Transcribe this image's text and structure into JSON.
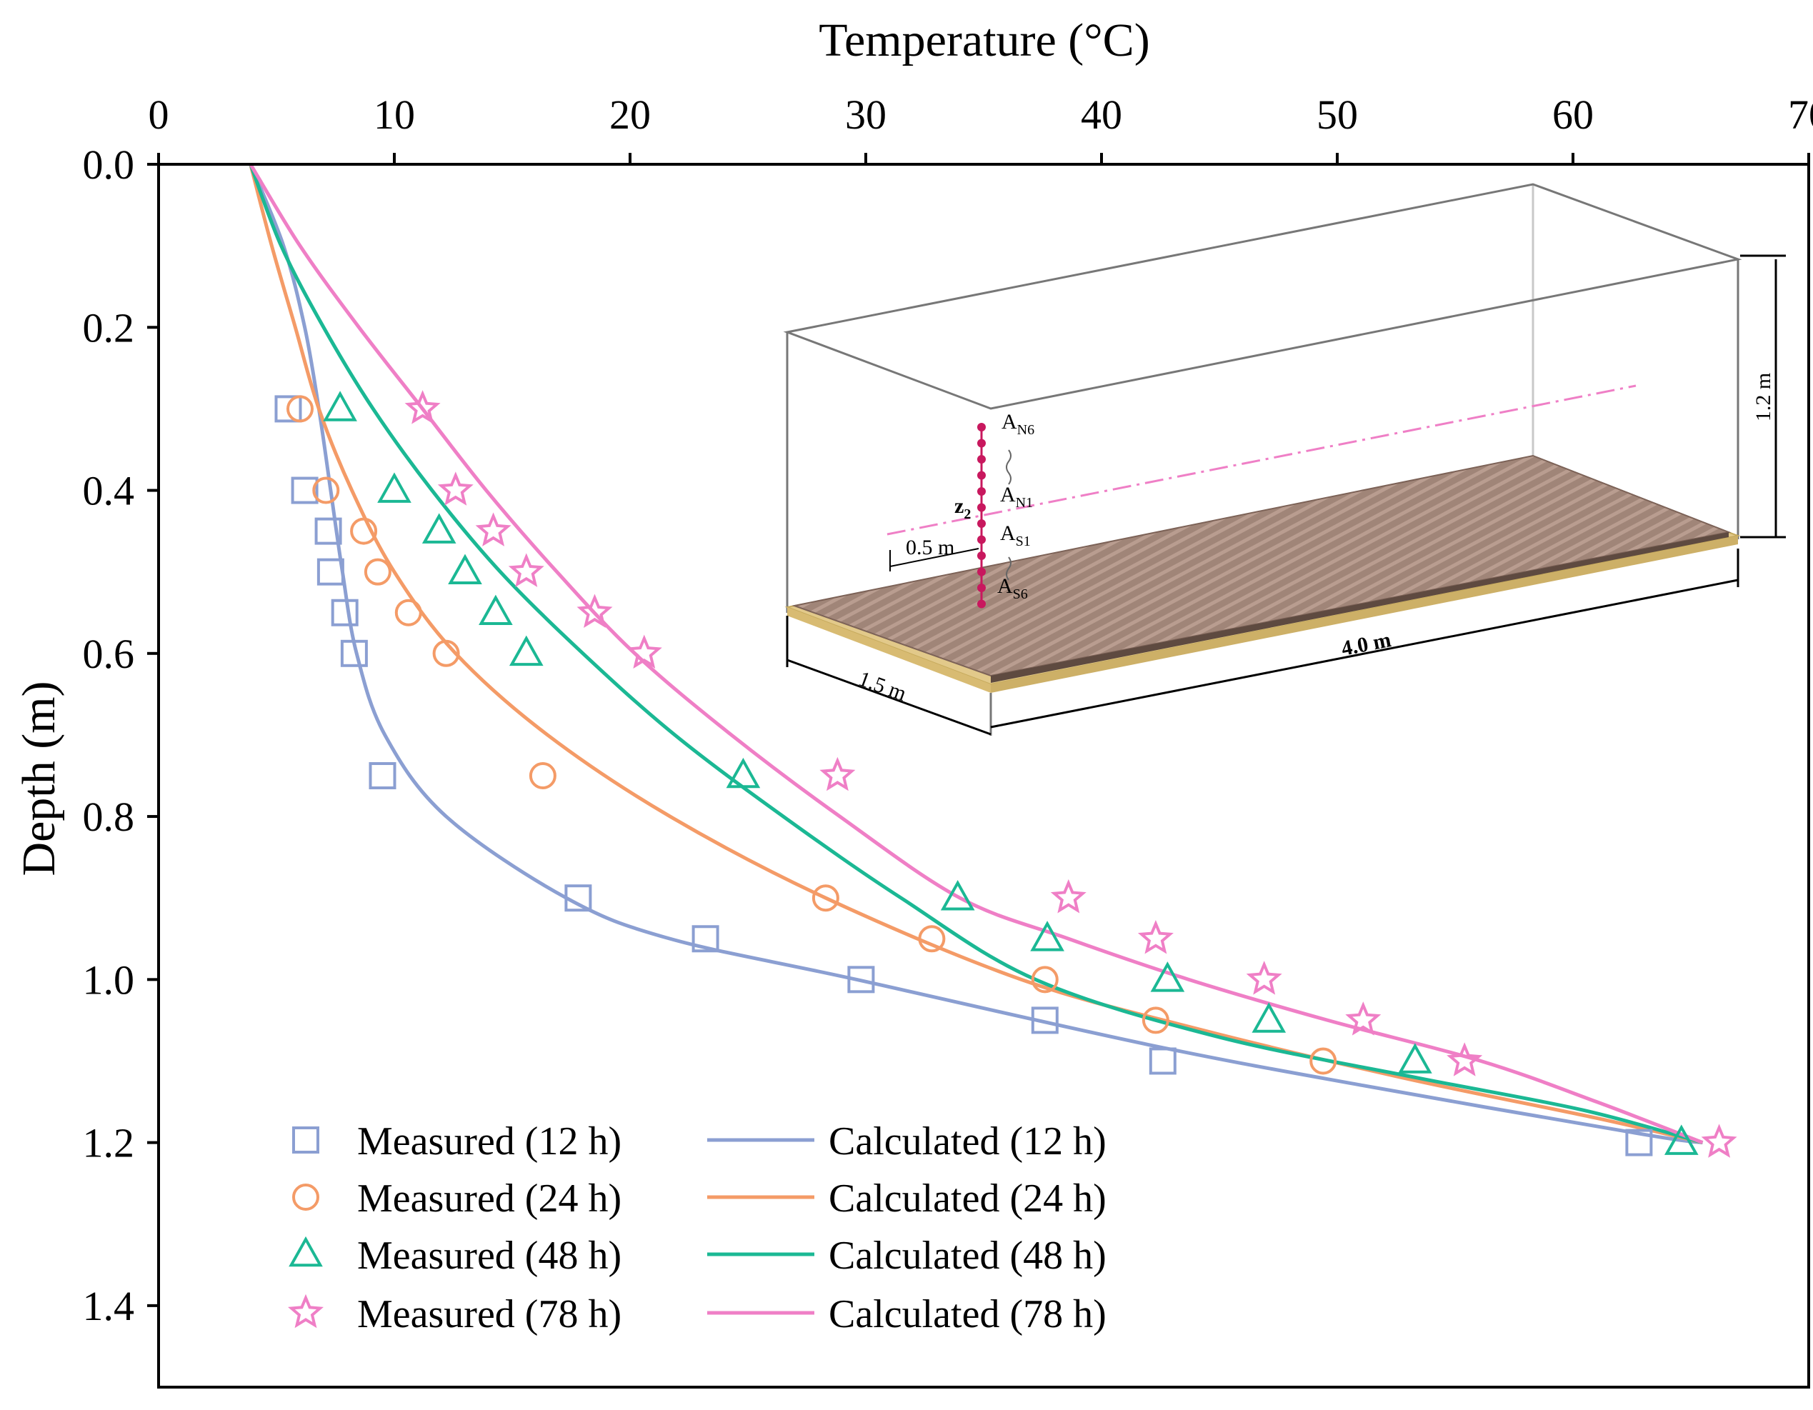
{
  "chart_data": {
    "type": "scatter",
    "title": "",
    "xlabel": "Temperature (°C)",
    "ylabel": "Depth (m)",
    "x_axis_position": "top",
    "y_axis_inverted": true,
    "xlim": [
      0,
      70
    ],
    "ylim": [
      0,
      1.5
    ],
    "xticks": [
      "0",
      "10",
      "20",
      "30",
      "40",
      "50",
      "60",
      "70"
    ],
    "yticks": [
      "0.0",
      "0.2",
      "0.4",
      "0.6",
      "0.8",
      "1.0",
      "1.2",
      "1.4"
    ],
    "grid": false,
    "legend_position": "bottom-left",
    "series": [
      {
        "name": "Measured (12 h)",
        "kind": "measured",
        "marker": "square",
        "color": "#8b9fd2",
        "points": [
          [
            5.5,
            0.3
          ],
          [
            6.2,
            0.4
          ],
          [
            7.2,
            0.45
          ],
          [
            7.3,
            0.5
          ],
          [
            7.9,
            0.55
          ],
          [
            8.3,
            0.6
          ],
          [
            9.5,
            0.75
          ],
          [
            17.8,
            0.9
          ],
          [
            23.2,
            0.95
          ],
          [
            29.8,
            1.0
          ],
          [
            37.6,
            1.05
          ],
          [
            42.6,
            1.1
          ],
          [
            62.8,
            1.2
          ]
        ]
      },
      {
        "name": "Measured (24 h)",
        "kind": "measured",
        "marker": "circle",
        "color": "#f49b67",
        "points": [
          [
            6.0,
            0.3
          ],
          [
            7.1,
            0.4
          ],
          [
            8.7,
            0.45
          ],
          [
            9.3,
            0.5
          ],
          [
            10.6,
            0.55
          ],
          [
            12.2,
            0.6
          ],
          [
            16.3,
            0.75
          ],
          [
            28.3,
            0.9
          ],
          [
            32.8,
            0.95
          ],
          [
            37.6,
            1.0
          ],
          [
            42.3,
            1.05
          ],
          [
            49.4,
            1.1
          ]
        ]
      },
      {
        "name": "Measured (48 h)",
        "kind": "measured",
        "marker": "triangle",
        "color": "#1bb894",
        "points": [
          [
            7.7,
            0.3
          ],
          [
            10.0,
            0.4
          ],
          [
            11.9,
            0.45
          ],
          [
            13.0,
            0.5
          ],
          [
            14.3,
            0.55
          ],
          [
            15.6,
            0.6
          ],
          [
            24.8,
            0.75
          ],
          [
            33.9,
            0.9
          ],
          [
            37.7,
            0.95
          ],
          [
            42.8,
            1.0
          ],
          [
            47.1,
            1.05
          ],
          [
            53.3,
            1.1
          ],
          [
            64.6,
            1.2
          ]
        ]
      },
      {
        "name": "Measured (78 h)",
        "kind": "measured",
        "marker": "star",
        "color": "#ef7fc6",
        "points": [
          [
            11.2,
            0.3
          ],
          [
            12.6,
            0.4
          ],
          [
            14.2,
            0.45
          ],
          [
            15.6,
            0.5
          ],
          [
            18.5,
            0.55
          ],
          [
            20.6,
            0.6
          ],
          [
            28.8,
            0.75
          ],
          [
            38.6,
            0.9
          ],
          [
            42.3,
            0.95
          ],
          [
            46.9,
            1.0
          ],
          [
            51.1,
            1.05
          ],
          [
            55.4,
            1.1
          ],
          [
            66.2,
            1.2
          ]
        ]
      },
      {
        "name": "Calculated (12 h)",
        "kind": "calculated",
        "color": "#8b9fd2",
        "points": [
          [
            3.9,
            0.0
          ],
          [
            5.3,
            0.1
          ],
          [
            6.2,
            0.2
          ],
          [
            6.8,
            0.3
          ],
          [
            7.3,
            0.4
          ],
          [
            7.8,
            0.5
          ],
          [
            8.4,
            0.6
          ],
          [
            9.6,
            0.7
          ],
          [
            12.2,
            0.8
          ],
          [
            17.3,
            0.9
          ],
          [
            21.7,
            0.95
          ],
          [
            29.6,
            1.0
          ],
          [
            42.0,
            1.08
          ],
          [
            51.1,
            1.13
          ],
          [
            63.0,
            1.19
          ],
          [
            65.5,
            1.2
          ]
        ]
      },
      {
        "name": "Calculated (24 h)",
        "kind": "calculated",
        "color": "#f49b67",
        "points": [
          [
            3.9,
            0.0
          ],
          [
            4.8,
            0.1
          ],
          [
            5.8,
            0.2
          ],
          [
            6.8,
            0.3
          ],
          [
            8.2,
            0.4
          ],
          [
            10.0,
            0.5
          ],
          [
            12.6,
            0.6
          ],
          [
            16.5,
            0.7
          ],
          [
            21.7,
            0.8
          ],
          [
            28.3,
            0.9
          ],
          [
            36.6,
            1.0
          ],
          [
            44.0,
            1.06
          ],
          [
            52.7,
            1.12
          ],
          [
            61.0,
            1.17
          ],
          [
            65.5,
            1.2
          ]
        ]
      },
      {
        "name": "Calculated (48 h)",
        "kind": "calculated",
        "color": "#1bb894",
        "points": [
          [
            3.9,
            0.0
          ],
          [
            5.2,
            0.1
          ],
          [
            7.0,
            0.2
          ],
          [
            9.1,
            0.3
          ],
          [
            11.6,
            0.4
          ],
          [
            14.5,
            0.5
          ],
          [
            18.0,
            0.6
          ],
          [
            21.9,
            0.7
          ],
          [
            26.5,
            0.8
          ],
          [
            31.5,
            0.9
          ],
          [
            37.2,
            1.0
          ],
          [
            44.9,
            1.07
          ],
          [
            53.3,
            1.12
          ],
          [
            60.4,
            1.16
          ],
          [
            65.5,
            1.2
          ]
        ]
      },
      {
        "name": "Calculated (78 h)",
        "kind": "calculated",
        "color": "#ef7fc6",
        "points": [
          [
            3.9,
            0.0
          ],
          [
            6.0,
            0.1
          ],
          [
            8.5,
            0.2
          ],
          [
            11.2,
            0.3
          ],
          [
            13.9,
            0.4
          ],
          [
            16.9,
            0.5
          ],
          [
            20.2,
            0.6
          ],
          [
            24.3,
            0.7
          ],
          [
            28.9,
            0.8
          ],
          [
            34.0,
            0.9
          ],
          [
            38.6,
            0.95
          ],
          [
            43.7,
            1.0
          ],
          [
            49.6,
            1.05
          ],
          [
            56.1,
            1.1
          ],
          [
            61.0,
            1.15
          ],
          [
            65.5,
            1.2
          ]
        ]
      }
    ],
    "inset": {
      "description_labels": {
        "height": "1.2 m",
        "length": "4.0 m",
        "width": "1.5 m",
        "offset": "0.5 m",
        "depth_var_main": "z",
        "depth_var_sub": "2",
        "sensor_top_main": "A",
        "sensor_top_sub": "N6",
        "sensor_n1_main": "A",
        "sensor_n1_sub": "N1",
        "sensor_s1_main": "A",
        "sensor_s1_sub": "S1",
        "sensor_bottom_main": "A",
        "sensor_bottom_sub": "S6"
      },
      "colors": {
        "pipes": "#9c8174",
        "sand": "#e2c98a",
        "sensor": "#c8185e",
        "centerline": "#ef7fc6"
      }
    }
  }
}
